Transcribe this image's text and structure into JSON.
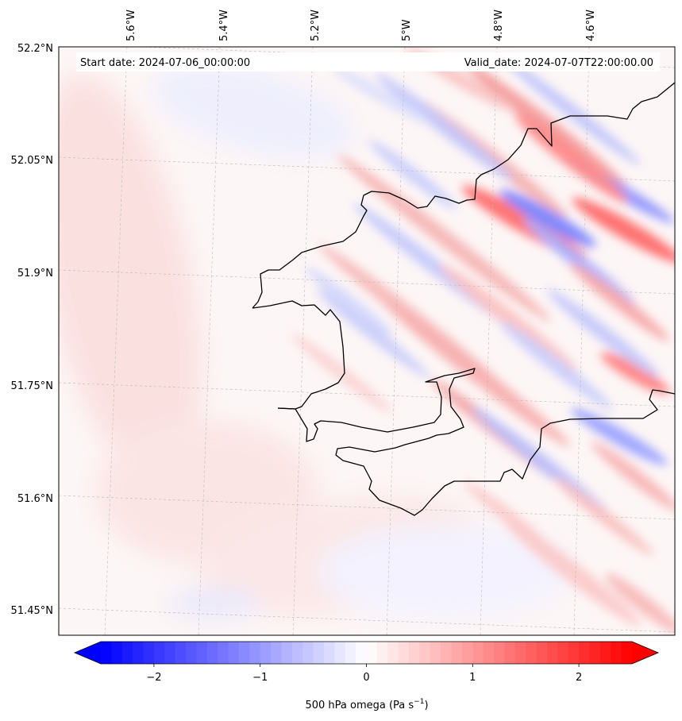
{
  "map": {
    "start_date_text": "Start date: 2024-07-06_00:00:00",
    "valid_date_text": "Valid_date: 2024-07-07T22:00:00.00",
    "longitude_labels": [
      "5.6°W",
      "5.4°W",
      "5.2°W",
      "5°W",
      "4.8°W",
      "4.6°W"
    ],
    "latitude_labels": [
      "52.2°N",
      "52.05°N",
      "51.9°N",
      "51.75°N",
      "51.6°N",
      "51.45°N"
    ],
    "coastline_color": "#000000",
    "gridlines": "dashed, light grey"
  },
  "colorbar": {
    "label_main": "500 hPa omega (Pa s",
    "label_exponent": "−1",
    "label_close": ")",
    "tick_labels": [
      "−2",
      "−1",
      "0",
      "1",
      "2"
    ],
    "tick_values": [
      -2,
      -1,
      0,
      1,
      2
    ],
    "range": [
      -2.5,
      2.5
    ],
    "colormap": "bwr",
    "extend": "both",
    "colors": {
      "min": "#0000ff",
      "mid": "#ffffff",
      "max": "#ff0000"
    }
  }
}
